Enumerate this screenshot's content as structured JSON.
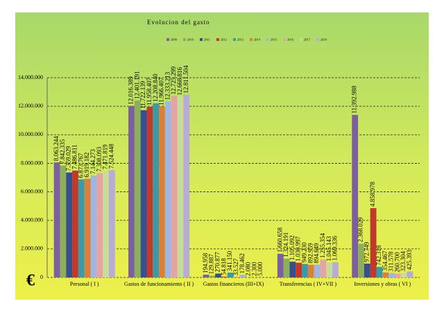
{
  "chart_data": {
    "type": "bar",
    "title": "Evolucion del gasto",
    "y_label": "€",
    "categories": [
      "Personal ( I )",
      "Gastos de funcionamiento ( II )",
      "Gastos financieros (III+IX)",
      "Transferencias ( IV+VII )",
      "Inversiones y obras ( VI )"
    ],
    "series": [
      {
        "name": "2009",
        "color": "#7b5fa0",
        "values": [
          8063244,
          12016389,
          194958,
          1660658,
          11392988
        ],
        "value_labels": [
          "8.063.244",
          "12.016.389",
          "194.958",
          "1.660.658",
          "11.392.988"
        ]
      },
      {
        "name": "2010",
        "color": "#8fae5a",
        "values": [
          7842335,
          12401191,
          129887,
          1324191,
          2368029
        ],
        "value_labels": [
          "7.842.335",
          "12.401.191",
          "129.887",
          "1.324.191",
          "2.368.029"
        ]
      },
      {
        "name": "2011",
        "color": "#34508f",
        "values": [
          7359029,
          11722139,
          270877,
          1105092,
          972749
        ],
        "value_labels": [
          "7.359.029",
          "11.722.139",
          "270.877",
          "1.105.092",
          "972.749"
        ]
      },
      {
        "name": "2012",
        "color": "#c0392b",
        "values": [
          7486811,
          11958407,
          54818,
          1030997,
          4858978
        ],
        "value_labels": [
          "7.486.811",
          "11.958.407",
          "54.818",
          "1.030.997",
          "4.858.978"
        ]
      },
      {
        "name": "2013",
        "color": "#3a9aa8",
        "values": [
          6873767,
          12208840,
          341150,
          949230,
          742318
        ],
        "value_labels": [
          "6.873.767",
          "12.208.840",
          "341.150",
          "949.230",
          "742.318"
        ]
      },
      {
        "name": "2014",
        "color": "#d9813a",
        "values": [
          6919182,
          11966407,
          33527,
          892959,
          354467
        ],
        "value_labels": [
          "6.919.182",
          "11.966.407",
          "33.527",
          "892.959",
          "354.467"
        ]
      },
      {
        "name": "2015",
        "color": "#9fb6e0",
        "values": [
          7144273,
          12333213,
          178462,
          894649,
          311578
        ],
        "value_labels": [
          "7.144.273",
          "12.333.213",
          "178.462",
          "894.649",
          "311.578"
        ]
      },
      {
        "name": "2016",
        "color": "#e6a3a3",
        "values": [
          7308093,
          12725299,
          2080,
          1255354,
          260700
        ],
        "value_labels": [
          "7.308.093",
          "12.725.299",
          "2.080",
          "1.255.354",
          "260.700"
        ]
      },
      {
        "name": "2017",
        "color": "#c8dc9a",
        "values": [
          7471819,
          12668816,
          2300,
          1045143,
          323304
        ],
        "value_labels": [
          "7.471.819",
          "12.668.816",
          "2.300",
          "1.045.143",
          "323.304"
        ]
      },
      {
        "name": "2018",
        "color": "#b8acd6",
        "values": [
          7524448,
          12811504,
          5000,
          1069336,
          425393
        ],
        "value_labels": [
          "7.524.448",
          "12.811.504",
          "5.000",
          "1.069.336",
          "425.393"
        ]
      }
    ],
    "ylim": [
      0,
      14000000
    ],
    "yticks": [
      {
        "value": 0,
        "label": "0"
      },
      {
        "value": 2000000,
        "label": "2.000.000"
      },
      {
        "value": 4000000,
        "label": "4.000.000"
      },
      {
        "value": 6000000,
        "label": "6.000.000"
      },
      {
        "value": 8000000,
        "label": "8.000.000"
      },
      {
        "value": 10000000,
        "label": "10.000.000"
      },
      {
        "value": 12000000,
        "label": "12.000.000"
      },
      {
        "value": 14000000,
        "label": "14.000.000"
      }
    ],
    "grid": true
  }
}
